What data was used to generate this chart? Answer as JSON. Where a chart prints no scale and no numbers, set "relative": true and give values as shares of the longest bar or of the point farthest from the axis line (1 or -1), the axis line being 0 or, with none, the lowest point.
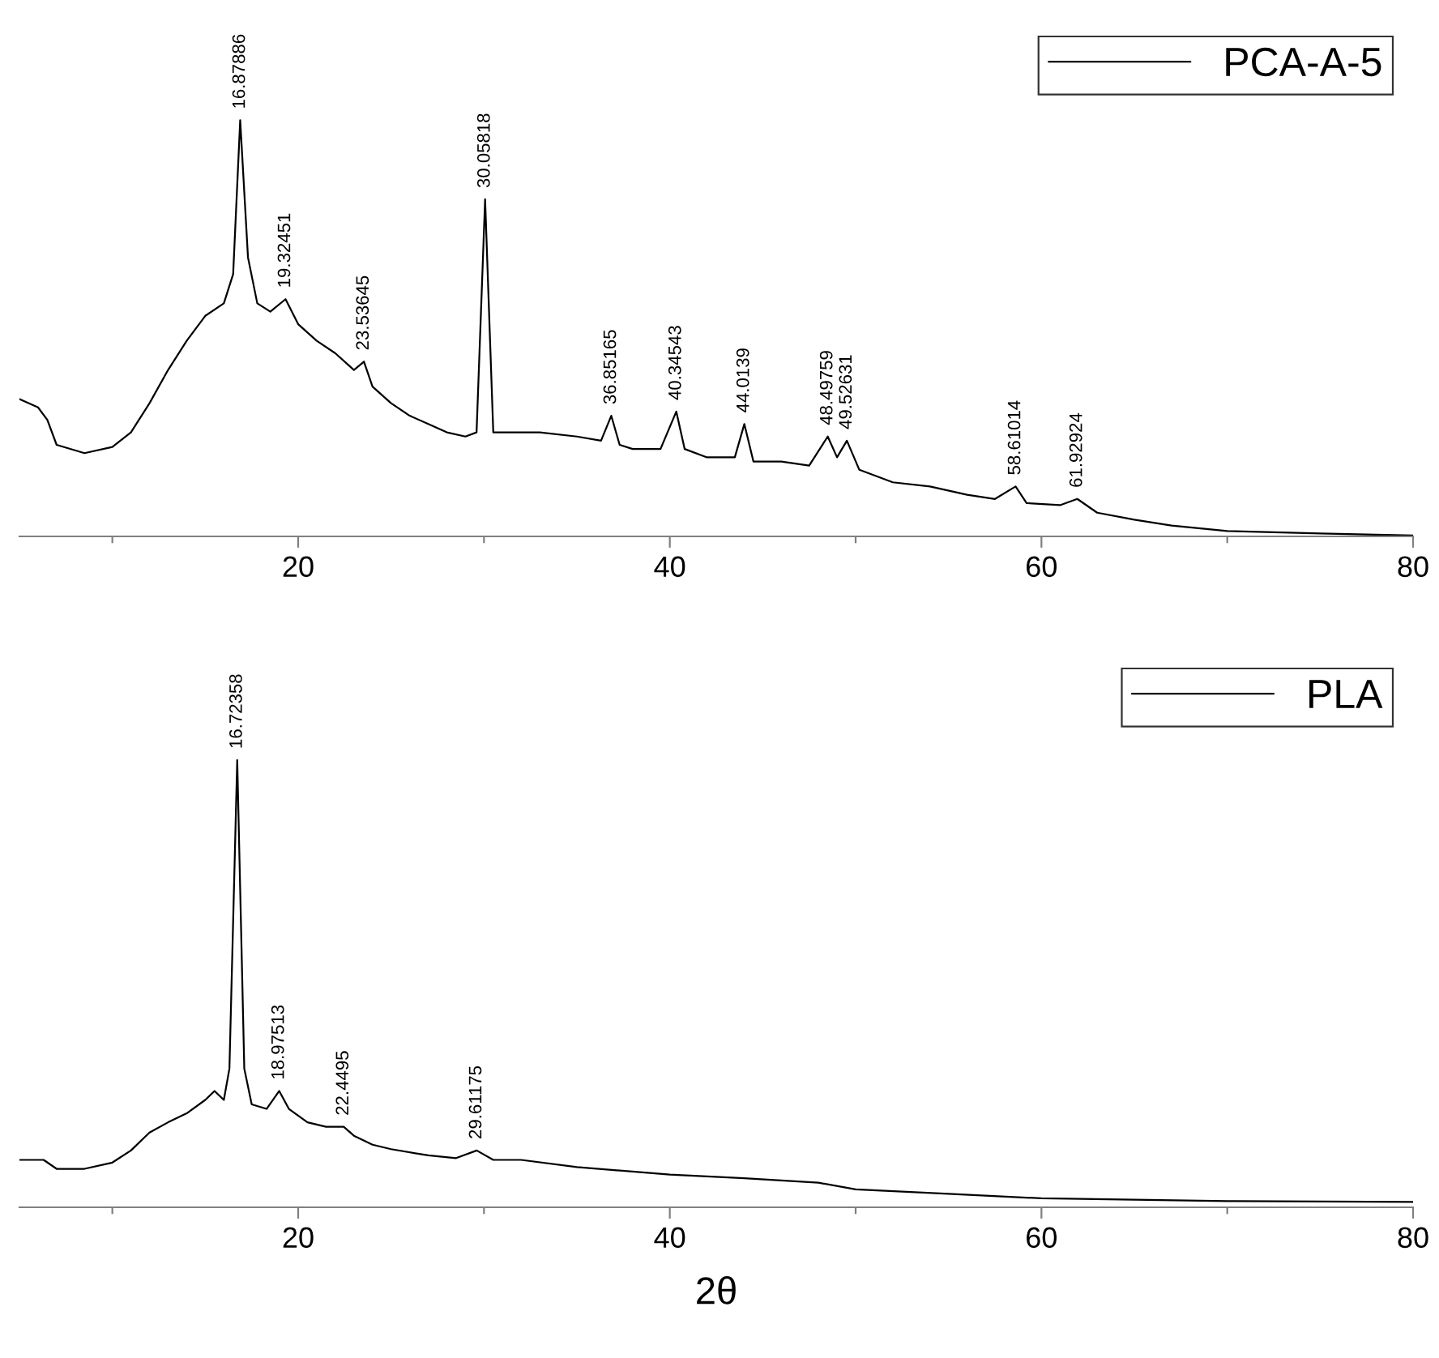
{
  "chart_data": [
    {
      "type": "line",
      "relative": true,
      "xlim": [
        5,
        80
      ],
      "xticks": [
        {
          "value": 10,
          "label": null
        },
        20,
        {
          "value": 30,
          "label": null
        },
        40,
        {
          "value": 50,
          "label": null
        },
        60,
        {
          "value": 70,
          "label": null
        },
        80
      ],
      "tick_labels": "x",
      "grid": false,
      "legend": "top right",
      "x": [
        5,
        6,
        6.5,
        7,
        8.5,
        10,
        11,
        12,
        13,
        14,
        15,
        16,
        16.5,
        16.88,
        17.3,
        17.8,
        18.5,
        19.32,
        20,
        21,
        22,
        23,
        23.54,
        24,
        25,
        26,
        27,
        28,
        29,
        29.6,
        30.06,
        30.5,
        31,
        33,
        35,
        36.3,
        36.85,
        37.3,
        38,
        39.5,
        40.35,
        40.8,
        42,
        43.5,
        44.01,
        44.5,
        46,
        47.5,
        48.5,
        49,
        49.53,
        50.2,
        52,
        54,
        56,
        57.5,
        58.61,
        59.2,
        61,
        61.93,
        63,
        65,
        67,
        70,
        75,
        80
      ],
      "series": [
        {
          "name": "PCA-A-5",
          "color": "#000000",
          "values": [
            0.33,
            0.31,
            0.28,
            0.22,
            0.2,
            0.215,
            0.25,
            0.32,
            0.4,
            0.47,
            0.53,
            0.56,
            0.63,
            1.0,
            0.67,
            0.56,
            0.54,
            0.57,
            0.51,
            0.47,
            0.44,
            0.4,
            0.42,
            0.36,
            0.32,
            0.29,
            0.27,
            0.25,
            0.24,
            0.25,
            0.81,
            0.25,
            0.25,
            0.25,
            0.24,
            0.23,
            0.29,
            0.22,
            0.21,
            0.21,
            0.3,
            0.21,
            0.19,
            0.19,
            0.27,
            0.18,
            0.18,
            0.17,
            0.24,
            0.19,
            0.23,
            0.16,
            0.13,
            0.12,
            0.1,
            0.09,
            0.12,
            0.08,
            0.075,
            0.09,
            0.057,
            0.04,
            0.026,
            0.013,
            0.007,
            0.002
          ]
        }
      ],
      "annotations": [
        {
          "text": "16.87886",
          "x": 16.88,
          "y": 1.0
        },
        {
          "text": "19.32451",
          "x": 19.32,
          "y": 0.57
        },
        {
          "text": "23.53645",
          "x": 23.54,
          "y": 0.42
        },
        {
          "text": "30.05818",
          "x": 30.06,
          "y": 0.81
        },
        {
          "text": "36.85165",
          "x": 36.85,
          "y": 0.29
        },
        {
          "text": "40.34543",
          "x": 40.35,
          "y": 0.3
        },
        {
          "text": "44.0139",
          "x": 44.01,
          "y": 0.27
        },
        {
          "text": "48.49759",
          "x": 48.5,
          "y": 0.24
        },
        {
          "text": "49.52631",
          "x": 49.53,
          "y": 0.23
        },
        {
          "text": "58.61014",
          "x": 58.61,
          "y": 0.12
        },
        {
          "text": "61.92924",
          "x": 61.93,
          "y": 0.09
        }
      ]
    },
    {
      "type": "line",
      "relative": true,
      "xlim": [
        5,
        80
      ],
      "xticks": [
        {
          "value": 10,
          "label": null
        },
        20,
        {
          "value": 30,
          "label": null
        },
        40,
        {
          "value": 50,
          "label": null
        },
        60,
        {
          "value": 70,
          "label": null
        },
        80
      ],
      "tick_labels": "x",
      "grid": false,
      "legend": "top right",
      "xlabel": "2θ",
      "x": [
        5,
        6.3,
        7,
        8.5,
        10,
        11,
        12,
        13,
        14,
        15,
        15.5,
        16,
        16.3,
        16.72,
        17.1,
        17.5,
        18.3,
        18.98,
        19.5,
        20.5,
        21.5,
        22.45,
        23,
        24,
        25,
        27,
        28.5,
        29.61,
        30.5,
        32,
        35,
        40,
        44,
        48,
        50,
        55,
        60,
        70,
        80
      ],
      "series": [
        {
          "name": "PLA",
          "color": "#000000",
          "values": [
            0.106,
            0.106,
            0.086,
            0.086,
            0.1,
            0.127,
            0.167,
            0.19,
            0.21,
            0.24,
            0.26,
            0.24,
            0.31,
            1.0,
            0.31,
            0.23,
            0.22,
            0.26,
            0.22,
            0.19,
            0.18,
            0.18,
            0.16,
            0.14,
            0.13,
            0.116,
            0.11,
            0.127,
            0.106,
            0.106,
            0.09,
            0.073,
            0.065,
            0.055,
            0.04,
            0.03,
            0.02,
            0.014,
            0.012
          ]
        }
      ],
      "annotations": [
        {
          "text": "16.72358",
          "x": 16.72,
          "y": 1.0
        },
        {
          "text": "18.97513",
          "x": 18.98,
          "y": 0.26
        },
        {
          "text": "22.4495",
          "x": 22.45,
          "y": 0.18
        },
        {
          "text": "29.61175",
          "x": 29.61,
          "y": 0.127
        }
      ]
    }
  ]
}
